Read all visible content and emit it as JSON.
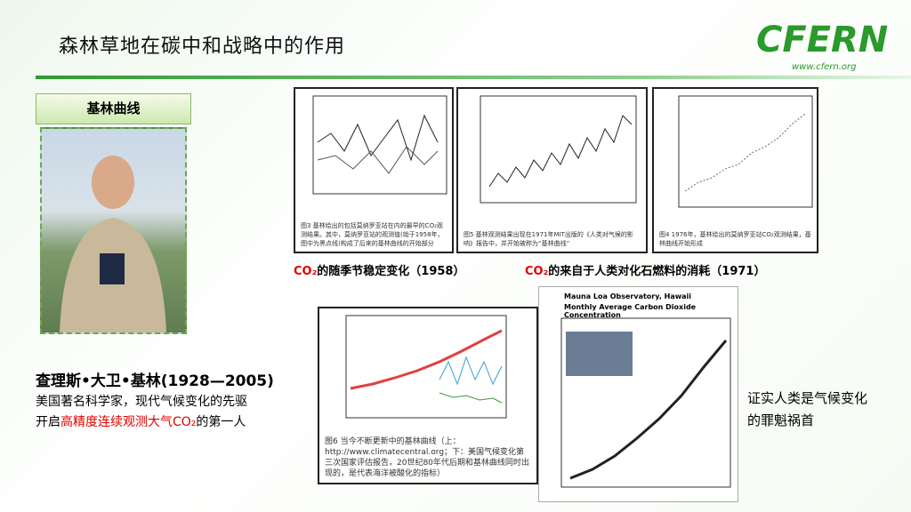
{
  "header": {
    "title": "森林草地在碳中和战略中的作用",
    "logo": "CFERN",
    "logo_url": "www.cfern.org"
  },
  "section_label": "基林曲线",
  "person": {
    "name": "查理斯•大卫•基林(1928—2005)",
    "line1": "美国著名科学家，现代气候变化的先驱",
    "line2_a": "开启",
    "line2_highlight": "高精度连续观测大气CO₂",
    "line2_b": "的第一人"
  },
  "figures": [
    {
      "caption": "图3 基林绘出的包括莫纳罗亚站在内的最早的CO₂观测结果。其中，莫纳罗亚站的观测值(始于1958年，图中为黑点线)构成了后来的基林曲线的开始部分"
    },
    {
      "caption": "图5 基林观测结果出现在1971年MIT出版的《人类对气候的影响》报告中，并开始被称为“基林曲线”"
    },
    {
      "caption": "图4 1976年，基林绘出的莫纳罗亚站CO₂观测结果，基林曲线开始形成"
    },
    {
      "caption": "图6 当今不断更新中的基林曲线（上：http://www.climatecentral.org；下：美国气候变化第三次国家评估报告，20世纪80年代后期和基林曲线同时出现的，是代表海洋被酸化的指标）"
    },
    {
      "title": "Mauna Loa Observatory, Hawaii",
      "subtitle": "Monthly Average Carbon Dioxide Concentration"
    }
  ],
  "captions": [
    {
      "co2": "CO₂",
      "text": "的随季节稳定变化（1958）"
    },
    {
      "co2": "CO₂",
      "text": "的来自于人类对化石燃料的消耗（1971）"
    }
  ],
  "conclusion": [
    "证实人类是气候变化",
    "的罪魁祸首"
  ]
}
